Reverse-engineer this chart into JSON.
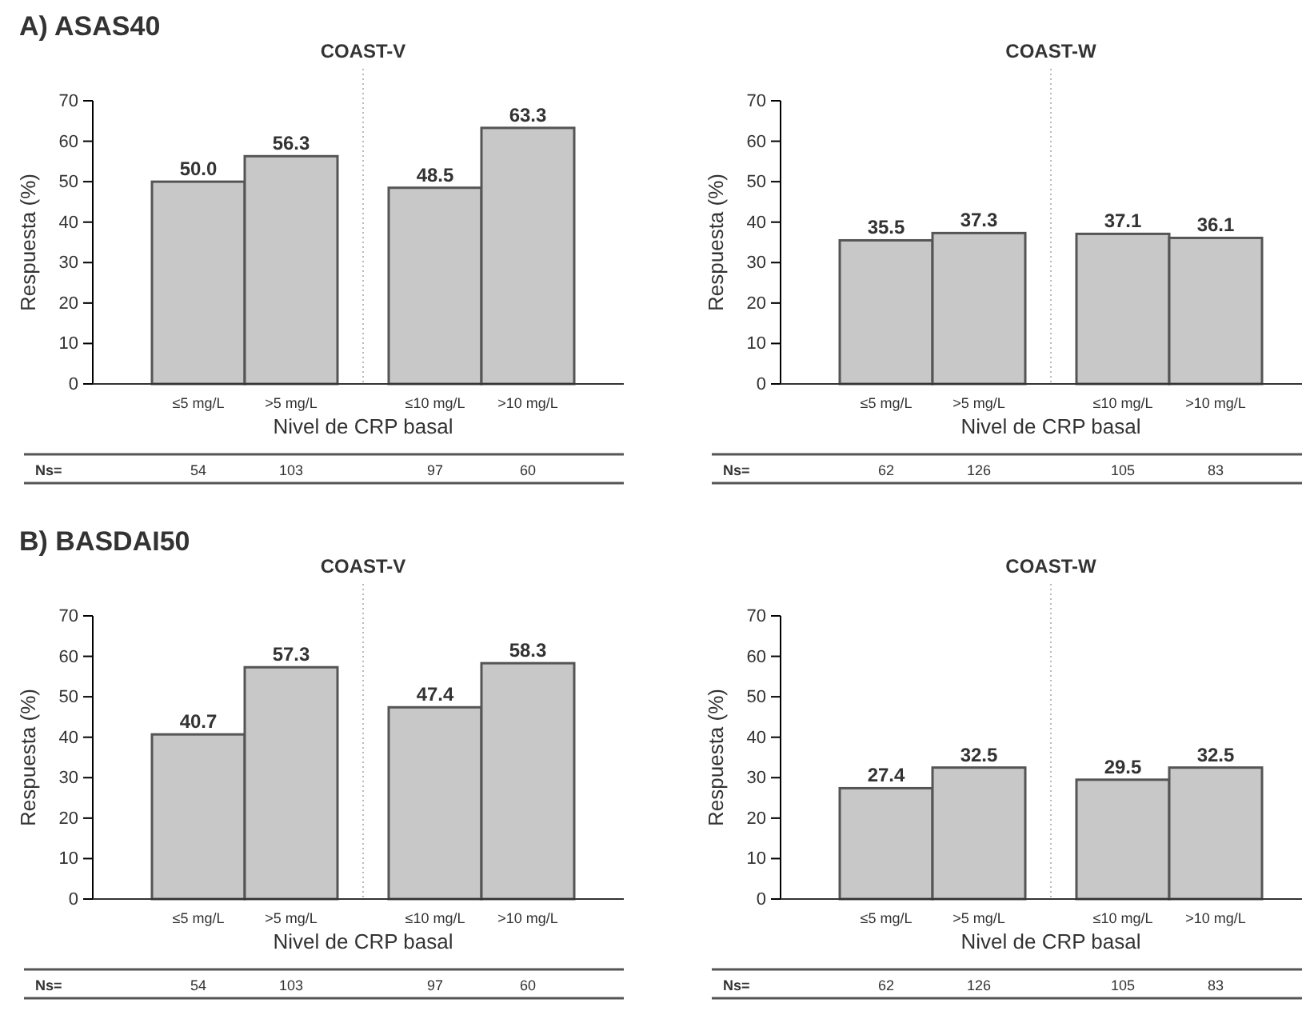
{
  "chart_data": [
    {
      "type": "bar",
      "subtitle": "A) ASAS40",
      "title": "COAST-V",
      "xlabel": "Nivel de CRP basal",
      "ylabel": "Respuesta (%)",
      "categories": [
        "≤5 mg/L",
        ">5 mg/L",
        "≤10 mg/L",
        ">10 mg/L"
      ],
      "values": [
        50.0,
        56.3,
        48.5,
        63.3
      ],
      "value_labels": [
        "50.0",
        "56.3",
        "48.5",
        "63.3"
      ],
      "color": "#c8c8c8",
      "ylim": [
        0,
        70
      ],
      "yticks": [
        0,
        10,
        20,
        30,
        40,
        50,
        60,
        70
      ],
      "annotations": [
        "Ns=",
        "54",
        "103",
        "97",
        "60"
      ]
    },
    {
      "type": "bar",
      "title": "COAST-W",
      "xlabel": "Nivel de CRP basal",
      "ylabel": "Respuesta (%)",
      "categories": [
        "≤5 mg/L",
        ">5 mg/L",
        "≤10 mg/L",
        ">10 mg/L"
      ],
      "values": [
        35.5,
        37.3,
        37.1,
        36.1
      ],
      "value_labels": [
        "35.5",
        "37.3",
        "37.1",
        "36.1"
      ],
      "color": "#c8c8c8",
      "ylim": [
        0,
        70
      ],
      "yticks": [
        0,
        10,
        20,
        30,
        40,
        50,
        60,
        70
      ],
      "annotations": [
        "Ns=",
        "62",
        "126",
        "105",
        "83"
      ]
    },
    {
      "type": "bar",
      "subtitle": "B) BASDAI50",
      "title": "COAST-V",
      "xlabel": "Nivel de CRP basal",
      "ylabel": "Respuesta (%)",
      "categories": [
        "≤5 mg/L",
        ">5 mg/L",
        "≤10 mg/L",
        ">10 mg/L"
      ],
      "values": [
        40.7,
        57.3,
        47.4,
        58.3
      ],
      "value_labels": [
        "40.7",
        "57.3",
        "47.4",
        "58.3"
      ],
      "color": "#c8c8c8",
      "ylim": [
        0,
        70
      ],
      "yticks": [
        0,
        10,
        20,
        30,
        40,
        50,
        60,
        70
      ],
      "annotations": [
        "Ns=",
        "54",
        "103",
        "97",
        "60"
      ]
    },
    {
      "type": "bar",
      "title": "COAST-W",
      "xlabel": "Nivel de CRP basal",
      "ylabel": "Respuesta (%)",
      "categories": [
        "≤5 mg/L",
        ">5 mg/L",
        "≤10 mg/L",
        ">10 mg/L"
      ],
      "values": [
        27.4,
        32.5,
        29.5,
        32.5
      ],
      "value_labels": [
        "27.4",
        "32.5",
        "29.5",
        "32.5"
      ],
      "color": "#c8c8c8",
      "ylim": [
        0,
        70
      ],
      "yticks": [
        0,
        10,
        20,
        30,
        40,
        50,
        60,
        70
      ],
      "annotations": [
        "Ns=",
        "62",
        "126",
        "105",
        "83"
      ]
    }
  ]
}
